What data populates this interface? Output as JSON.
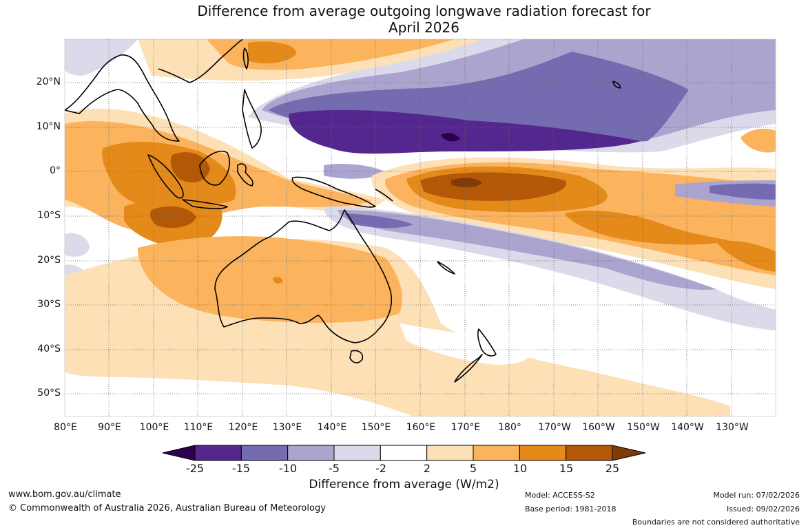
{
  "title": {
    "line1": "Difference from average outgoing longwave radiation forecast for",
    "line2": "April 2026"
  },
  "lat_labels": [
    "20°N",
    "10°N",
    "0°",
    "10°S",
    "20°S",
    "30°S",
    "40°S",
    "50°S"
  ],
  "lon_labels": [
    "80°E",
    "90°E",
    "100°E",
    "110°E",
    "120°E",
    "130°E",
    "140°E",
    "150°E",
    "160°E",
    "170°E",
    "180°",
    "170°W",
    "160°W",
    "150°W",
    "140°W",
    "130°W"
  ],
  "colorbar": {
    "ticks": [
      "-25",
      "-15",
      "-10",
      "-5",
      "-2",
      "2",
      "5",
      "10",
      "15",
      "25"
    ],
    "colors": [
      "#54278f",
      "#756bb1",
      "#aaa4cf",
      "#dadaeb",
      "#ffffff",
      "#fde0b5",
      "#fbb35d",
      "#e38a1a",
      "#b35806"
    ],
    "low_extend_color": "#2d004b",
    "high_extend_color": "#7f3b08",
    "label": "Difference from average (W/m2)"
  },
  "footer": {
    "website": "www.bom.gov.au/climate",
    "copyright": "© Commonwealth of Australia 2026, Australian Bureau of Meteorology",
    "model": "Model: ACCESS-S2",
    "base_period": "Base period: 1981-2018",
    "model_run": "Model run: 07/02/2026",
    "issued": "Issued: 09/02/2026",
    "disclaimer": "Boundaries are not considered authoritative"
  }
}
